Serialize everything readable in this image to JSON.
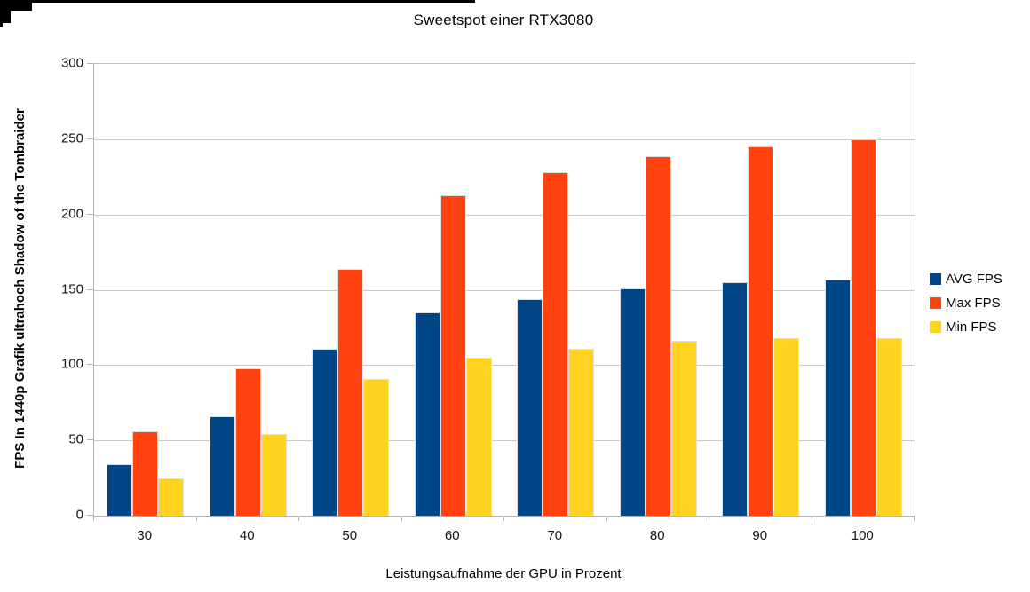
{
  "chart_data": {
    "type": "bar",
    "title": "Sweetspot einer RTX3080",
    "xlabel": "Leistungsaufnahme der GPU in Prozent",
    "ylabel": "FPS In 1440p Grafik ultrahoch Shadow of the Tombraider",
    "categories": [
      "30",
      "40",
      "50",
      "60",
      "70",
      "80",
      "90",
      "100"
    ],
    "series": [
      {
        "name": "AVG FPS",
        "color": "#004586",
        "values": [
          34,
          66,
          111,
          135,
          144,
          151,
          155,
          157
        ]
      },
      {
        "name": "Max FPS",
        "color": "#ff420e",
        "values": [
          56,
          98,
          164,
          213,
          228,
          239,
          245,
          250
        ]
      },
      {
        "name": "Min FPS",
        "color": "#ffd320",
        "values": [
          25,
          54,
          91,
          105,
          111,
          116,
          118,
          118
        ]
      }
    ],
    "ylim": [
      0,
      300
    ],
    "yticks": [
      "0",
      "50",
      "100",
      "150",
      "200",
      "250",
      "300"
    ],
    "grid": true,
    "legend_position": "right",
    "background_color": "#ffffff",
    "gridline_color": "#c9c9c9",
    "axis_color": "#b3b3b3"
  }
}
